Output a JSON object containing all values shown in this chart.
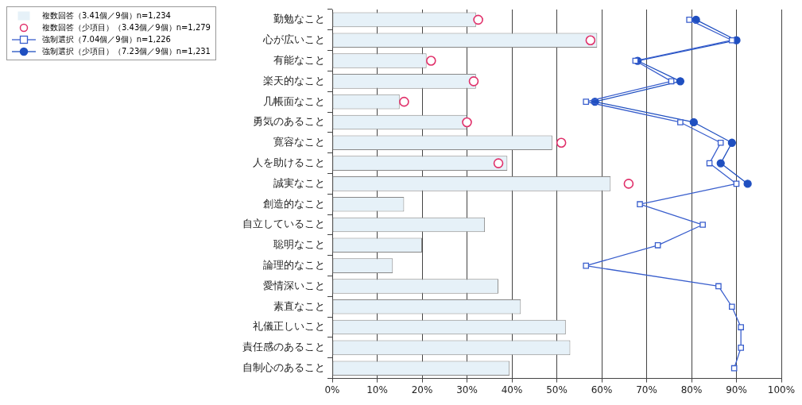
{
  "chart_data": {
    "type": "bar",
    "orientation": "horizontal",
    "grid": "x",
    "legend": "top left",
    "categories": [
      "勤勉なこと",
      "心が広いこと",
      "有能なこと",
      "楽天的なこと",
      "几帳面なこと",
      "勇気のあること",
      "寛容なこと",
      "人を助けること",
      "誠実なこと",
      "創造的なこと",
      "自立していること",
      "聡明なこと",
      "論理的なこと",
      "愛情深いこと",
      "素直なこと",
      "礼儀正しいこと",
      "責任感のあること",
      "自制心のあること"
    ],
    "xlim": [
      0,
      100
    ],
    "xticks": [
      {
        "value": 0,
        "label": "0%"
      },
      {
        "value": 10,
        "label": "10%"
      },
      {
        "value": 20,
        "label": "20%"
      },
      {
        "value": 30,
        "label": "30%"
      },
      {
        "value": 40,
        "label": "40%"
      },
      {
        "value": 50,
        "label": "50%"
      },
      {
        "value": 60,
        "label": "60%"
      },
      {
        "value": 70,
        "label": "70%"
      },
      {
        "value": 80,
        "label": "80%"
      },
      {
        "value": 90,
        "label": "90%"
      },
      {
        "value": 100,
        "label": "100%"
      }
    ],
    "series": [
      {
        "name": "複数回答（3.41個／9個）n=1,234",
        "color": "#e6f1f8",
        "values": [
          32,
          59,
          21,
          32,
          15,
          30,
          49,
          39,
          62,
          16,
          34,
          20,
          13.5,
          37,
          42,
          52,
          53,
          39.5
        ]
      },
      {
        "name": "複数回答（少項目）（3.43個／9個）n=1,279",
        "type": "scatter",
        "marker": "circle",
        "color": "#e0306a",
        "values": [
          32.5,
          57.5,
          22,
          31.5,
          16,
          30,
          51,
          37,
          66,
          null,
          null,
          null,
          null,
          null,
          null,
          null,
          null,
          null
        ]
      },
      {
        "name": "強制選択（7.04個／9個）n=1,226",
        "type": "line",
        "marker": "square",
        "line_style": "solid",
        "color": "#3a5fcd",
        "values": [
          79.5,
          89,
          67.5,
          75.5,
          56.5,
          77.5,
          86.5,
          84,
          90,
          68.5,
          82.5,
          72.5,
          56.5,
          86,
          89,
          91,
          91,
          89.5
        ]
      },
      {
        "name": "強制選択（少項目）（7.23個／9個）n=1,231",
        "type": "line",
        "marker": "circle",
        "line_style": "solid",
        "color": "#1f4fc0",
        "values": [
          81,
          90,
          68,
          77.5,
          58.5,
          80.5,
          89,
          86.5,
          92.5,
          null,
          null,
          null,
          null,
          null,
          null,
          null,
          null,
          null
        ]
      }
    ]
  }
}
